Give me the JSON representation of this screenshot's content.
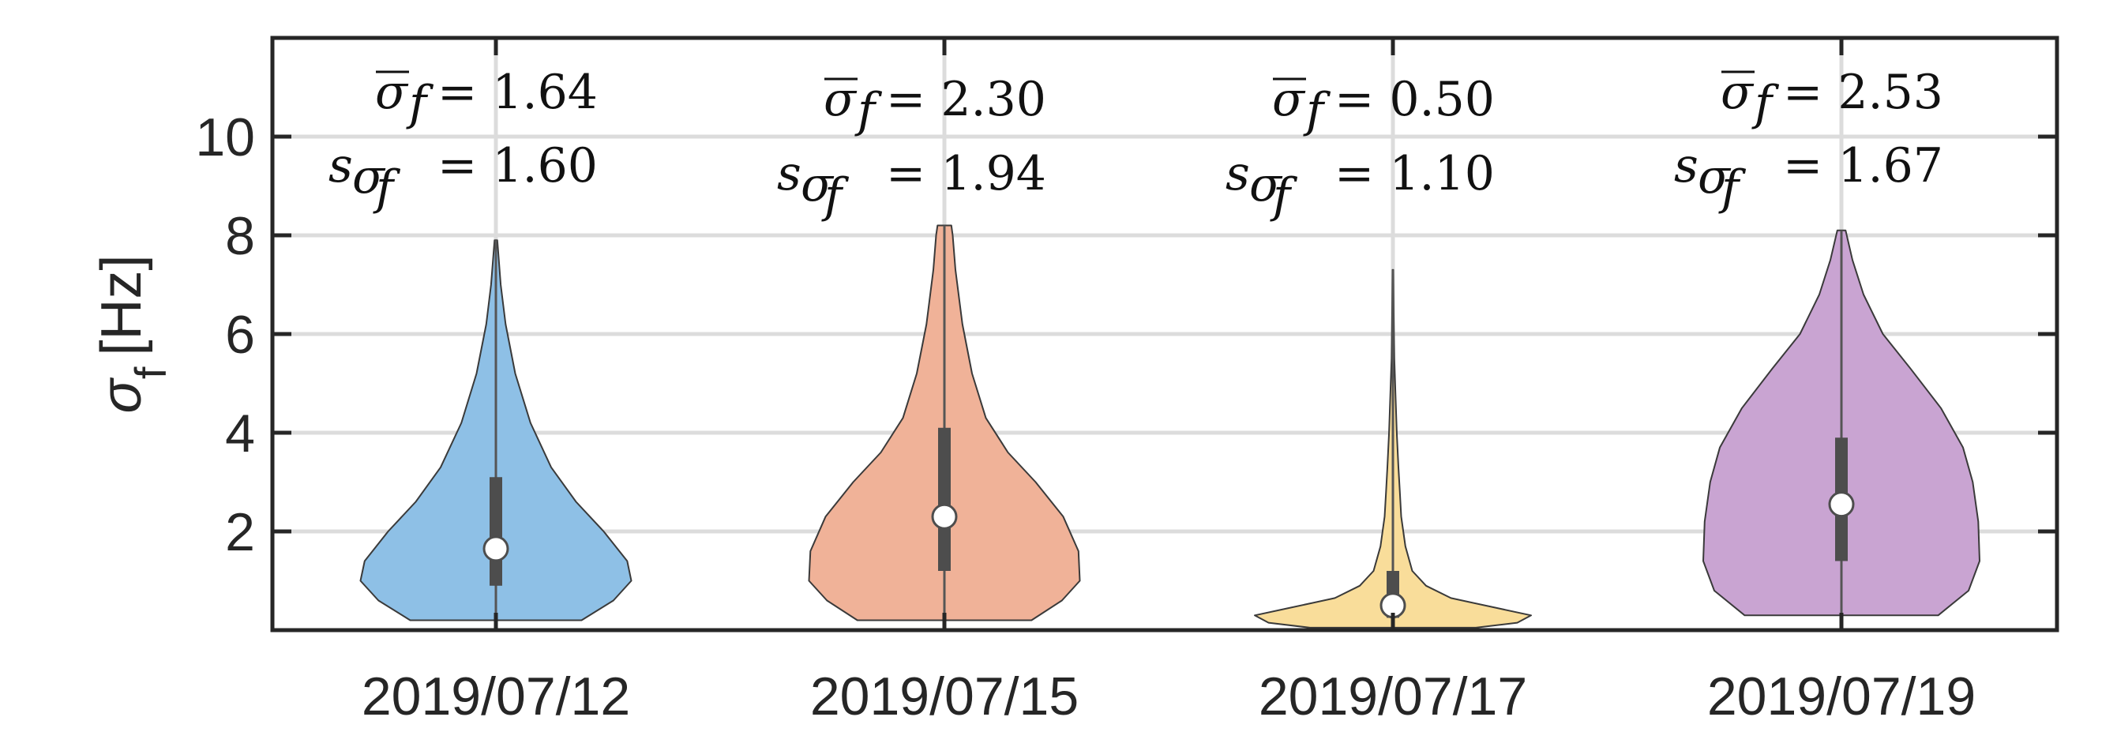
{
  "chart_data": {
    "type": "violin",
    "title": "",
    "xlabel": "",
    "ylabel": "σ_f [Hz]",
    "ylim": [
      0,
      12
    ],
    "yticks": [
      2,
      4,
      6,
      8,
      10
    ],
    "grid": true,
    "categories": [
      "2019/07/12",
      "2019/07/15",
      "2019/07/17",
      "2019/07/19"
    ],
    "series": [
      {
        "category": "2019/07/12",
        "color": "#8ec0e6",
        "median": 1.65,
        "q1": 0.9,
        "q3": 3.1,
        "min": 0.2,
        "max": 7.9,
        "mean_label": "= 1.64",
        "std_label": "= 1.60",
        "density": [
          [
            0.2,
            0.62
          ],
          [
            0.6,
            0.85
          ],
          [
            1.0,
            0.98
          ],
          [
            1.4,
            0.95
          ],
          [
            2.0,
            0.78
          ],
          [
            2.6,
            0.58
          ],
          [
            3.3,
            0.4
          ],
          [
            4.2,
            0.25
          ],
          [
            5.2,
            0.14
          ],
          [
            6.2,
            0.07
          ],
          [
            7.0,
            0.035
          ],
          [
            7.9,
            0.01
          ]
        ]
      },
      {
        "category": "2019/07/15",
        "color": "#f0b298",
        "median": 2.3,
        "q1": 1.2,
        "q3": 4.1,
        "min": 0.2,
        "max": 8.2,
        "mean_label": "= 2.30",
        "std_label": "= 1.94",
        "density": [
          [
            0.2,
            0.63
          ],
          [
            0.6,
            0.85
          ],
          [
            1.0,
            0.98
          ],
          [
            1.6,
            0.97
          ],
          [
            2.3,
            0.86
          ],
          [
            3.0,
            0.66
          ],
          [
            3.6,
            0.46
          ],
          [
            4.3,
            0.3
          ],
          [
            5.2,
            0.2
          ],
          [
            6.2,
            0.13
          ],
          [
            7.3,
            0.08
          ],
          [
            8.0,
            0.06
          ],
          [
            8.2,
            0.05
          ]
        ]
      },
      {
        "category": "2019/07/17",
        "color": "#f9dd9a",
        "median": 0.5,
        "q1": 0.25,
        "q3": 1.2,
        "min": 0.05,
        "max": 7.3,
        "mean_label": "= 0.50",
        "std_label": "= 1.10",
        "density": [
          [
            0.05,
            0.6
          ],
          [
            0.15,
            0.9
          ],
          [
            0.3,
            1.0
          ],
          [
            0.45,
            0.75
          ],
          [
            0.65,
            0.42
          ],
          [
            0.9,
            0.24
          ],
          [
            1.2,
            0.14
          ],
          [
            1.7,
            0.09
          ],
          [
            2.3,
            0.06
          ],
          [
            2.8,
            0.05
          ],
          [
            3.3,
            0.04
          ],
          [
            4.0,
            0.028
          ],
          [
            4.8,
            0.018
          ],
          [
            5.5,
            0.01
          ],
          [
            6.4,
            0.006
          ],
          [
            7.3,
            0.003
          ]
        ]
      },
      {
        "category": "2019/07/19",
        "color": "#c9a4d2",
        "median": 2.55,
        "q1": 1.4,
        "q3": 3.9,
        "min": 0.3,
        "max": 8.1,
        "mean_label": "= 2.53",
        "std_label": "= 1.67",
        "density": [
          [
            0.3,
            0.7
          ],
          [
            0.8,
            0.92
          ],
          [
            1.4,
            1.0
          ],
          [
            2.2,
            0.99
          ],
          [
            3.0,
            0.95
          ],
          [
            3.7,
            0.88
          ],
          [
            4.5,
            0.72
          ],
          [
            5.3,
            0.5
          ],
          [
            6.0,
            0.3
          ],
          [
            6.8,
            0.16
          ],
          [
            7.5,
            0.08
          ],
          [
            8.1,
            0.03
          ]
        ]
      }
    ]
  }
}
